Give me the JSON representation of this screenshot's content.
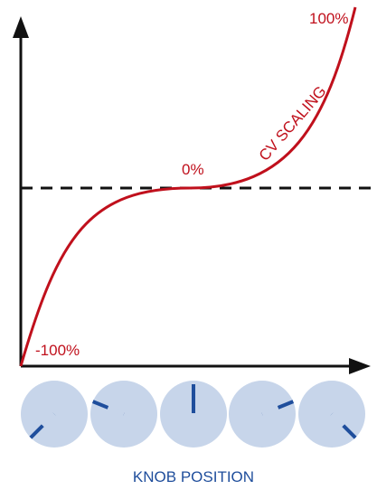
{
  "diagram": {
    "curve_label": "CV SCALING",
    "labels": {
      "top": "100%",
      "middle": "0%",
      "bottom": "-100%"
    },
    "x_axis_label": "KNOB POSITION",
    "knobs": [
      {
        "position": 1
      },
      {
        "position": 2
      },
      {
        "position": 3
      },
      {
        "position": 4
      },
      {
        "position": 5
      }
    ],
    "colors": {
      "curve": "#c0101c",
      "axes": "#111111",
      "knob_fill": "#c7d5ea",
      "knob_pointer": "#1f4e9c",
      "caption": "#1f4e9c"
    }
  }
}
